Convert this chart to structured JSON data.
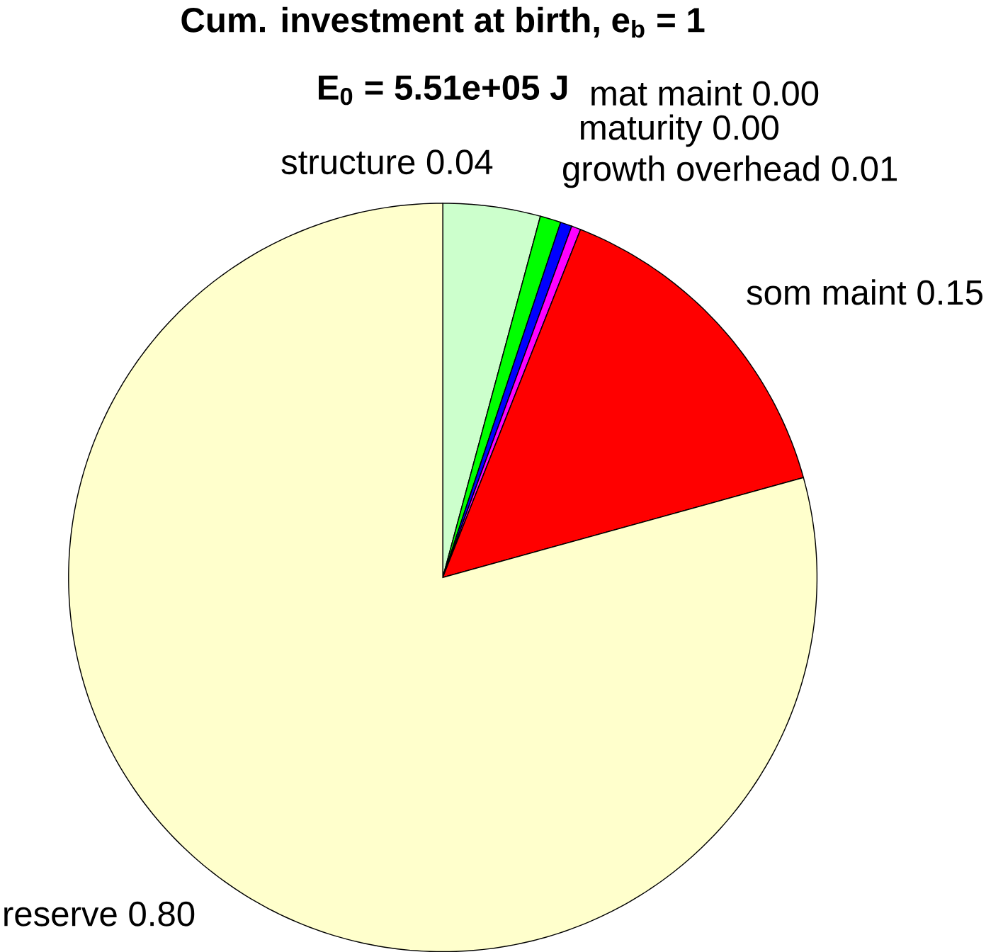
{
  "chart_data": {
    "type": "pie",
    "title": "Cum. investment at birth, e$_{b}$ = 1",
    "subtitle": "E$_{0}$ = 5.51e+05 J",
    "categories": [
      "structure 0.04",
      "growth overhead 0.01",
      "maturity 0.00",
      "mat maint 0.00",
      "som maint 0.15",
      "reserve 0.80"
    ],
    "values": [
      4.2,
      0.9,
      0.5,
      0.4,
      14.7,
      79.3
    ],
    "colors": [
      "#ccffcc",
      "#00ff00",
      "#0000ff",
      "#ff00ff",
      "#ff0000",
      "#ffffcc"
    ]
  }
}
